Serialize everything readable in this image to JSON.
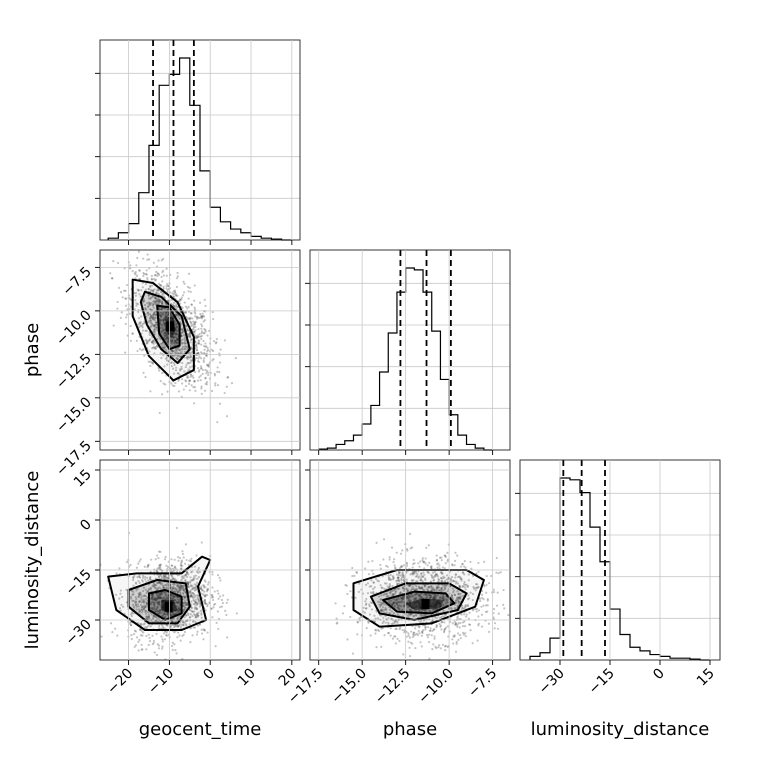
{
  "chart_data": {
    "type": "corner",
    "parameters": [
      {
        "name": "geocent_time",
        "label": "geocent_time",
        "range": [
          -27,
          22
        ],
        "ticks": [
          -20,
          -10,
          0,
          10,
          20
        ],
        "tick_labels": [
          "−20",
          "−10",
          "0",
          "10",
          "20"
        ],
        "quantiles": [
          -14,
          -9,
          -4
        ],
        "hist_bins": [
          -25,
          -22.5,
          -20,
          -17.5,
          -15,
          -12.5,
          -10,
          -7.5,
          -5,
          -2.5,
          0,
          2.5,
          5,
          7.5,
          10,
          12.5,
          15,
          17.5,
          20
        ],
        "hist_counts": [
          0.01,
          0.04,
          0.09,
          0.26,
          0.52,
          0.85,
          0.91,
          1.0,
          0.74,
          0.38,
          0.18,
          0.1,
          0.06,
          0.04,
          0.02,
          0.01,
          0.005,
          0.0
        ]
      },
      {
        "name": "phase",
        "label": "phase",
        "range": [
          -18,
          -6.5
        ],
        "ticks": [
          -17.5,
          -15.0,
          -12.5,
          -10.0,
          -7.5
        ],
        "tick_labels": [
          "−17.5",
          "−15.0",
          "−12.5",
          "−10.0",
          "−7.5"
        ],
        "quantiles": [
          -12.8,
          -11.3,
          -9.9
        ],
        "hist_bins": [
          -17.5,
          -17,
          -16.5,
          -16,
          -15.5,
          -15,
          -14.5,
          -14,
          -13.5,
          -13,
          -12.5,
          -12,
          -11.5,
          -11,
          -10.5,
          -10,
          -9.5,
          -9,
          -8.5,
          -8,
          -7.5
        ],
        "hist_counts": [
          0.005,
          0.01,
          0.03,
          0.05,
          0.08,
          0.14,
          0.24,
          0.42,
          0.63,
          0.85,
          0.98,
          0.97,
          0.85,
          0.64,
          0.38,
          0.19,
          0.08,
          0.03,
          0.01,
          0.0
        ]
      },
      {
        "name": "luminosity_distance",
        "label": "luminosity_distance",
        "range": [
          -42,
          18
        ],
        "ticks": [
          -30,
          -15,
          0,
          15
        ],
        "tick_labels": [
          "−30",
          "−15",
          "0",
          "15"
        ],
        "quantiles": [
          -29,
          -23.5,
          -16.5
        ],
        "hist_bins": [
          -39,
          -36,
          -33,
          -30,
          -27,
          -24,
          -21,
          -18,
          -15,
          -12,
          -9,
          -6,
          -3,
          0,
          3,
          6,
          9,
          12,
          15
        ],
        "hist_counts": [
          0.02,
          0.04,
          0.12,
          1.0,
          0.99,
          0.92,
          0.73,
          0.54,
          0.28,
          0.14,
          0.07,
          0.05,
          0.03,
          0.02,
          0.01,
          0.01,
          0.005,
          0.0
        ]
      }
    ],
    "y_ticks_2d": {
      "phase": {
        "ticks": [
          -7.5,
          -10.0,
          -12.5,
          -15.0,
          -17.5
        ],
        "tick_labels": [
          "−7.5",
          "−10.0",
          "−12.5",
          "−15.0",
          "−17.5"
        ]
      },
      "luminosity_distance": {
        "ticks": [
          15,
          0,
          -15,
          -30
        ],
        "tick_labels": [
          "15",
          "0",
          "−15",
          "−30"
        ]
      }
    },
    "pairs": [
      {
        "x": "geocent_time",
        "y": "phase",
        "center": [
          -9.5,
          -11.0
        ],
        "spread": [
          5.0,
          1.6
        ],
        "correlation": -0.55,
        "contours": [
          [
            [
              -19,
              -8.2
            ],
            [
              -14,
              -8.4
            ],
            [
              -8,
              -9.5
            ],
            [
              -4,
              -11.5
            ],
            [
              -4,
              -13.4
            ],
            [
              -9,
              -14.0
            ],
            [
              -15,
              -12.6
            ],
            [
              -19,
              -10.3
            ]
          ],
          [
            [
              -16,
              -8.9
            ],
            [
              -12,
              -9.2
            ],
            [
              -7,
              -10.3
            ],
            [
              -5,
              -12.2
            ],
            [
              -8,
              -13.0
            ],
            [
              -12,
              -12.2
            ],
            [
              -15.5,
              -10.8
            ],
            [
              -17,
              -9.5
            ]
          ],
          [
            [
              -13,
              -9.7
            ],
            [
              -10,
              -9.8
            ],
            [
              -7.5,
              -10.8
            ],
            [
              -7.5,
              -12.0
            ],
            [
              -10,
              -12.2
            ],
            [
              -12.5,
              -11.3
            ]
          ],
          [
            [
              -11,
              -10.3
            ],
            [
              -9,
              -10.4
            ],
            [
              -8.5,
              -11.1
            ],
            [
              -9.5,
              -11.6
            ],
            [
              -11,
              -11.1
            ]
          ]
        ]
      },
      {
        "x": "geocent_time",
        "y": "luminosity_distance",
        "center": [
          -10,
          -24
        ],
        "spread": [
          5.0,
          6.0
        ],
        "correlation": 0.1,
        "contours": [
          [
            [
              -25,
              -17
            ],
            [
              -18,
              -16
            ],
            [
              -7,
              -16
            ],
            [
              -2,
              -11
            ],
            [
              0,
              -12
            ],
            [
              -3,
              -20
            ],
            [
              -1,
              -30
            ],
            [
              -7,
              -33
            ],
            [
              -16,
              -33
            ],
            [
              -23,
              -27
            ]
          ],
          [
            [
              -20,
              -21
            ],
            [
              -13,
              -18
            ],
            [
              -6,
              -19
            ],
            [
              -5,
              -26
            ],
            [
              -8,
              -31
            ],
            [
              -15,
              -31
            ],
            [
              -20,
              -26
            ]
          ],
          [
            [
              -15,
              -22
            ],
            [
              -11,
              -21
            ],
            [
              -7,
              -23
            ],
            [
              -7,
              -28
            ],
            [
              -11,
              -30
            ],
            [
              -15,
              -27
            ]
          ],
          [
            [
              -12,
              -24
            ],
            [
              -9,
              -24
            ],
            [
              -8,
              -27
            ],
            [
              -10,
              -28
            ],
            [
              -12,
              -27
            ]
          ]
        ]
      },
      {
        "x": "phase",
        "y": "luminosity_distance",
        "center": [
          -11.5,
          -24
        ],
        "spread": [
          1.8,
          6.0
        ],
        "correlation": 0.0,
        "contours": [
          [
            [
              -15.5,
              -19
            ],
            [
              -13,
              -15
            ],
            [
              -9,
              -15
            ],
            [
              -8,
              -18
            ],
            [
              -8.5,
              -26
            ],
            [
              -11,
              -31
            ],
            [
              -14,
              -32
            ],
            [
              -15.5,
              -27
            ]
          ],
          [
            [
              -14.5,
              -23
            ],
            [
              -12.5,
              -19
            ],
            [
              -10,
              -19
            ],
            [
              -9,
              -22
            ],
            [
              -9.5,
              -27
            ],
            [
              -12,
              -30
            ],
            [
              -14,
              -28
            ]
          ],
          [
            [
              -13.8,
              -24
            ],
            [
              -12,
              -21.5
            ],
            [
              -10.2,
              -22
            ],
            [
              -9.7,
              -25
            ],
            [
              -11,
              -28
            ],
            [
              -13,
              -27.5
            ]
          ],
          [
            [
              -12.5,
              -25
            ],
            [
              -11.5,
              -23.5
            ],
            [
              -10.3,
              -24
            ],
            [
              -10.5,
              -26.5
            ],
            [
              -12,
              -27
            ]
          ]
        ]
      }
    ],
    "scatter_color": "#555555",
    "shade_color": "#000000",
    "grid": true
  }
}
